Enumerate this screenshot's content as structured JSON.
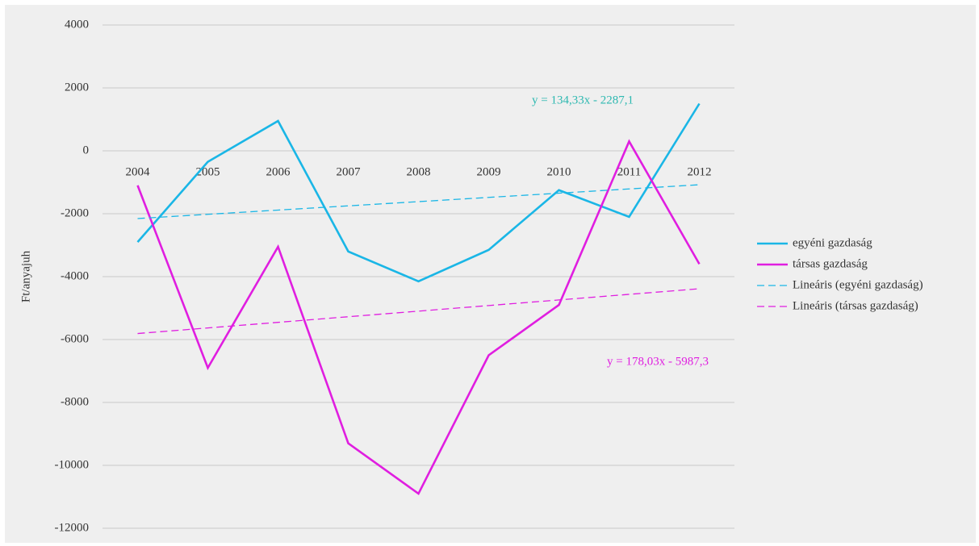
{
  "chart_data": {
    "type": "line",
    "y_label": "Ft/anyajuh",
    "categories": [
      "2004",
      "2005",
      "2006",
      "2007",
      "2008",
      "2009",
      "2010",
      "2011",
      "2012"
    ],
    "series": [
      {
        "name": "egyéni gazdaság",
        "color": "#1ab6e6",
        "values": [
          -2900,
          -350,
          950,
          -3200,
          -4150,
          -3150,
          -1250,
          -2100,
          1500
        ]
      },
      {
        "name": "társas gazdaság",
        "color": "#e01ee0",
        "values": [
          -1100,
          -6900,
          -3050,
          -9300,
          -10900,
          -6500,
          -4900,
          300,
          -3600
        ]
      },
      {
        "name": "Lineáris (egyéni gazdaság)",
        "color": "#1ab6e6",
        "dashed": true,
        "values": [
          -2153,
          -2019,
          -1884,
          -1750,
          -1616,
          -1481,
          -1347,
          -1212,
          -1078
        ]
      },
      {
        "name": "Lineáris (társas gazdaság)",
        "color": "#e01ee0",
        "dashed": true,
        "values": [
          -5809,
          -5631,
          -5453,
          -5275,
          -5097,
          -4919,
          -4741,
          -4563,
          -4385
        ]
      }
    ],
    "annotations": [
      {
        "text": "y = 134,33x - 2287,1",
        "color": "#2cb8b0"
      },
      {
        "text": "y = 178,03x - 5987,3",
        "color": "#e01ee0"
      }
    ],
    "ylim": [
      -12000,
      4000
    ],
    "yticks": [
      -12000,
      -10000,
      -8000,
      -6000,
      -4000,
      -2000,
      0,
      2000,
      4000
    ],
    "grid": true,
    "legend": "right"
  }
}
